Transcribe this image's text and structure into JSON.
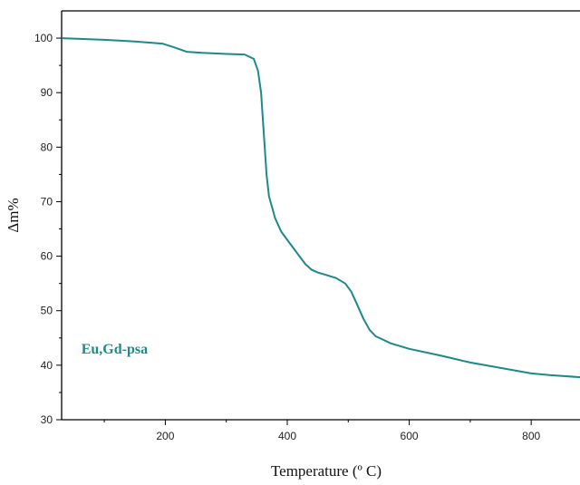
{
  "chart_data": {
    "type": "line",
    "xlabel": "Temperature (º C)",
    "ylabel": "Δm%",
    "xlim": [
      30,
      880
    ],
    "ylim": [
      30,
      105
    ],
    "x_ticks": [
      200,
      400,
      600,
      800
    ],
    "y_ticks": [
      30,
      40,
      50,
      60,
      70,
      80,
      90,
      100
    ],
    "grid": false,
    "annotations": [
      {
        "text": "Eu,Gd-psa",
        "x": 40,
        "y": 43
      }
    ],
    "series": [
      {
        "name": "Eu,Gd-psa",
        "color": "#1a8a8a",
        "x": [
          30,
          100,
          150,
          195,
          215,
          235,
          260,
          300,
          330,
          345,
          352,
          357,
          360,
          363,
          366,
          370,
          375,
          380,
          390,
          400,
          410,
          420,
          430,
          440,
          450,
          465,
          480,
          495,
          505,
          515,
          525,
          535,
          545,
          555,
          570,
          600,
          650,
          700,
          750,
          800,
          830,
          880
        ],
        "y": [
          100,
          99.7,
          99.4,
          99.0,
          98.3,
          97.5,
          97.3,
          97.1,
          97.0,
          96.2,
          94.0,
          90.0,
          85.0,
          80.0,
          75.0,
          71.0,
          69.0,
          67.0,
          64.5,
          63.0,
          61.5,
          60.0,
          58.5,
          57.5,
          57.0,
          56.5,
          56.0,
          55.0,
          53.5,
          51.0,
          48.5,
          46.5,
          45.3,
          44.8,
          44.0,
          43.0,
          41.8,
          40.5,
          39.5,
          38.5,
          38.2,
          37.8
        ]
      }
    ]
  }
}
